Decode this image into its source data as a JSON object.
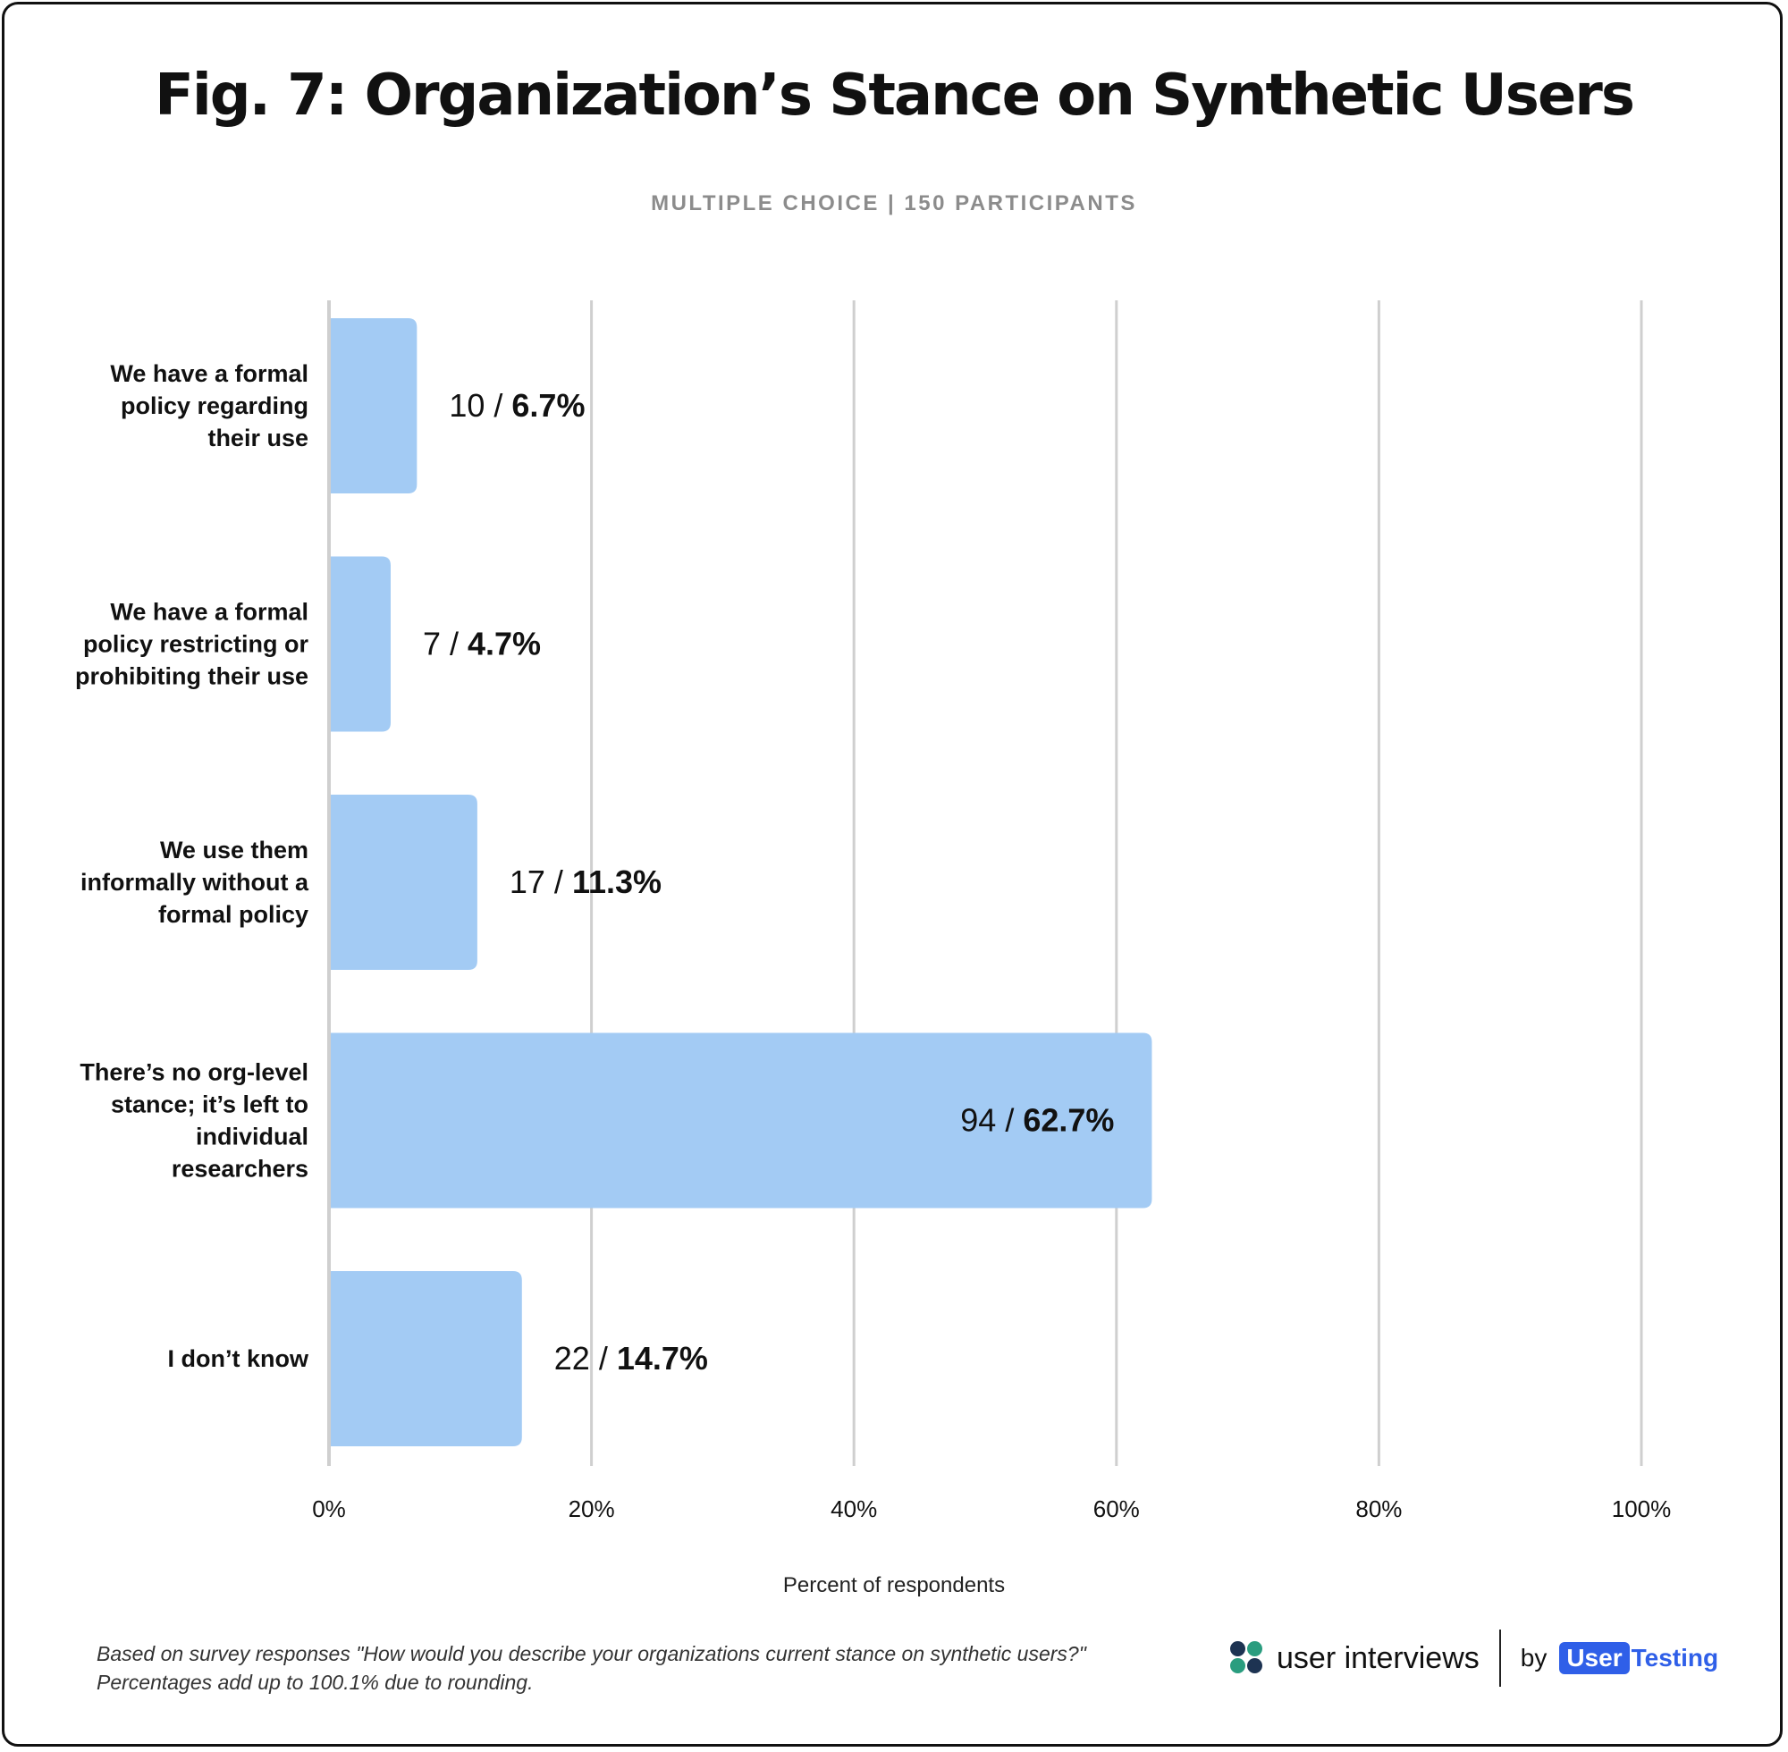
{
  "title": {
    "fig_label": "Fig. 7:",
    "text": "Organization’s Stance on Synthetic Users"
  },
  "subtitle": "MULTIPLE CHOICE | 150 PARTICIPANTS",
  "colors": {
    "bar": "#a3cbf4",
    "grid": "#cfcfcf",
    "text": "#111111",
    "brand_blue": "#2f5fe8"
  },
  "chart_data": {
    "type": "bar",
    "orientation": "horizontal",
    "categories": [
      [
        "We have a formal",
        "policy regarding",
        "their use"
      ],
      [
        "We have a formal",
        "policy restricting or",
        "prohibiting their use"
      ],
      [
        "We use them",
        "informally without a",
        "formal policy"
      ],
      [
        "There’s no org-level",
        "stance; it’s left to",
        "individual",
        "researchers"
      ],
      [
        "I don’t know"
      ]
    ],
    "counts": [
      10,
      7,
      17,
      94,
      22
    ],
    "values": [
      6.7,
      4.7,
      11.3,
      62.7,
      14.7
    ],
    "value_labels": [
      "6.7%",
      "4.7%",
      "11.3%",
      "62.7%",
      "14.7%"
    ],
    "xlim": [
      0,
      100
    ],
    "xticks": [
      0,
      20,
      40,
      60,
      80,
      100
    ],
    "xtick_labels": [
      "0%",
      "20%",
      "40%",
      "60%",
      "80%",
      "100%"
    ],
    "xlabel": "Percent of respondents",
    "grid": true
  },
  "footnote": "Based on survey responses \"How would you describe your organizations current stance on synthetic users?\" Percentages add up to 100.1% due to rounding.",
  "branding": {
    "name": "user interviews",
    "by": "by",
    "partner_box": "User",
    "partner_rest": "Testing",
    "icon": "user-interviews-logo-icon"
  }
}
